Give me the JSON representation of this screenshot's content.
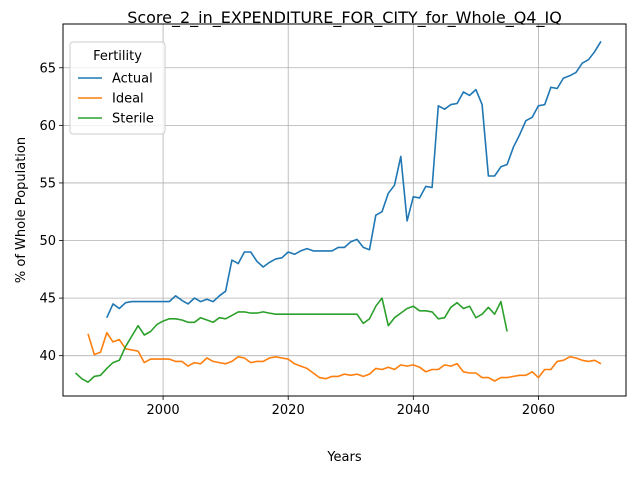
{
  "chart_data": {
    "type": "line",
    "title": "Score_2_in_EXPENDITURE_FOR_CITY_for_Whole_Q4_IQ",
    "xlabel": "Years",
    "ylabel": "% of Whole Population",
    "xlim": [
      1984,
      2074
    ],
    "ylim": [
      36.5,
      68.8
    ],
    "xticks": [
      2000,
      2020,
      2040,
      2060
    ],
    "yticks": [
      40,
      45,
      50,
      55,
      60,
      65
    ],
    "grid": true,
    "legend": {
      "title": "Fertility",
      "position": "upper-left"
    },
    "series": [
      {
        "name": "Actual",
        "color": "#1f77b4",
        "x": [
          1991,
          1992,
          1993,
          1994,
          1995,
          1996,
          1997,
          1998,
          1999,
          2000,
          2001,
          2002,
          2003,
          2004,
          2005,
          2006,
          2007,
          2008,
          2009,
          2010,
          2011,
          2012,
          2013,
          2014,
          2015,
          2016,
          2017,
          2018,
          2019,
          2020,
          2021,
          2022,
          2023,
          2024,
          2025,
          2026,
          2027,
          2028,
          2029,
          2030,
          2031,
          2032,
          2033,
          2034,
          2035,
          2036,
          2037,
          2038,
          2039,
          2040,
          2041,
          2042,
          2043,
          2044,
          2045,
          2046,
          2047,
          2048,
          2049,
          2050,
          2051,
          2052,
          2053,
          2054,
          2055,
          2056,
          2057,
          2058,
          2059,
          2060,
          2061,
          2062,
          2063,
          2064,
          2065,
          2066,
          2067,
          2068,
          2069,
          2070
        ],
        "y": [
          43.3,
          44.5,
          44.1,
          44.6,
          44.7,
          44.7,
          44.7,
          44.7,
          44.7,
          44.7,
          44.7,
          45.2,
          44.8,
          44.5,
          45.0,
          44.7,
          44.9,
          44.7,
          45.2,
          45.6,
          48.3,
          48.0,
          49.0,
          49.0,
          48.2,
          47.7,
          48.1,
          48.4,
          48.5,
          49.0,
          48.8,
          49.1,
          49.3,
          49.1,
          49.1,
          49.1,
          49.1,
          49.4,
          49.4,
          49.9,
          50.1,
          49.4,
          49.2,
          52.2,
          52.5,
          54.1,
          54.8,
          57.3,
          51.7,
          53.8,
          53.7,
          54.7,
          54.6,
          61.7,
          61.4,
          61.8,
          61.9,
          62.9,
          62.6,
          63.1,
          61.8,
          55.6,
          55.6,
          56.4,
          56.6,
          58.1,
          59.2,
          60.4,
          60.7,
          61.7,
          61.8,
          63.3,
          63.2,
          64.1,
          64.3,
          64.6,
          65.4,
          65.7,
          66.4,
          67.3
        ]
      },
      {
        "name": "Ideal",
        "color": "#ff7f0e",
        "x": [
          1988,
          1989,
          1990,
          1991,
          1992,
          1993,
          1994,
          1995,
          1996,
          1997,
          1998,
          1999,
          2000,
          2001,
          2002,
          2003,
          2004,
          2005,
          2006,
          2007,
          2008,
          2009,
          2010,
          2011,
          2012,
          2013,
          2014,
          2015,
          2016,
          2017,
          2018,
          2019,
          2020,
          2021,
          2022,
          2023,
          2024,
          2025,
          2026,
          2027,
          2028,
          2029,
          2030,
          2031,
          2032,
          2033,
          2034,
          2035,
          2036,
          2037,
          2038,
          2039,
          2040,
          2041,
          2042,
          2043,
          2044,
          2045,
          2046,
          2047,
          2048,
          2049,
          2050,
          2051,
          2052,
          2053,
          2054,
          2055,
          2056,
          2057,
          2058,
          2059,
          2060,
          2061,
          2062,
          2063,
          2064,
          2065,
          2066,
          2067,
          2068,
          2069,
          2070
        ],
        "y": [
          41.9,
          40.1,
          40.3,
          42.0,
          41.2,
          41.4,
          40.6,
          40.5,
          40.4,
          39.4,
          39.7,
          39.7,
          39.7,
          39.7,
          39.5,
          39.5,
          39.1,
          39.4,
          39.3,
          39.8,
          39.5,
          39.4,
          39.3,
          39.5,
          39.9,
          39.8,
          39.4,
          39.5,
          39.5,
          39.8,
          39.9,
          39.8,
          39.7,
          39.3,
          39.1,
          38.9,
          38.5,
          38.1,
          38.0,
          38.2,
          38.2,
          38.4,
          38.3,
          38.4,
          38.2,
          38.4,
          38.9,
          38.8,
          39.0,
          38.8,
          39.2,
          39.1,
          39.2,
          39.0,
          38.6,
          38.8,
          38.8,
          39.2,
          39.1,
          39.3,
          38.6,
          38.5,
          38.5,
          38.1,
          38.1,
          37.8,
          38.1,
          38.1,
          38.2,
          38.3,
          38.3,
          38.6,
          38.1,
          38.8,
          38.8,
          39.5,
          39.6,
          39.9,
          39.8,
          39.6,
          39.5,
          39.6,
          39.3
        ]
      },
      {
        "name": "Sterile",
        "color": "#2ca02c",
        "x": [
          1986,
          1987,
          1988,
          1989,
          1990,
          1991,
          1992,
          1993,
          1994,
          1995,
          1996,
          1997,
          1998,
          1999,
          2000,
          2001,
          2002,
          2003,
          2004,
          2005,
          2006,
          2007,
          2008,
          2009,
          2010,
          2011,
          2012,
          2013,
          2014,
          2015,
          2016,
          2017,
          2018,
          2019,
          2020,
          2021,
          2022,
          2023,
          2024,
          2025,
          2026,
          2027,
          2028,
          2029,
          2030,
          2031,
          2032,
          2033,
          2034,
          2035,
          2036,
          2037,
          2038,
          2039,
          2040,
          2041,
          2042,
          2043,
          2044,
          2045,
          2046,
          2047,
          2048,
          2049,
          2050,
          2051,
          2052,
          2053,
          2054,
          2055
        ],
        "y": [
          38.5,
          38.0,
          37.7,
          38.2,
          38.3,
          38.9,
          39.4,
          39.6,
          40.8,
          41.7,
          42.6,
          41.8,
          42.1,
          42.7,
          43.0,
          43.2,
          43.2,
          43.1,
          42.9,
          42.9,
          43.3,
          43.1,
          42.9,
          43.3,
          43.2,
          43.5,
          43.8,
          43.8,
          43.7,
          43.7,
          43.8,
          43.7,
          43.6,
          43.6,
          43.6,
          43.6,
          43.6,
          43.6,
          43.6,
          43.6,
          43.6,
          43.6,
          43.6,
          43.6,
          43.6,
          43.6,
          42.8,
          43.2,
          44.3,
          45.0,
          42.6,
          43.3,
          43.7,
          44.1,
          44.3,
          43.9,
          43.9,
          43.8,
          43.2,
          43.3,
          44.2,
          44.6,
          44.1,
          44.3,
          43.3,
          43.6,
          44.2,
          43.6,
          44.7,
          42.1
        ]
      }
    ]
  }
}
